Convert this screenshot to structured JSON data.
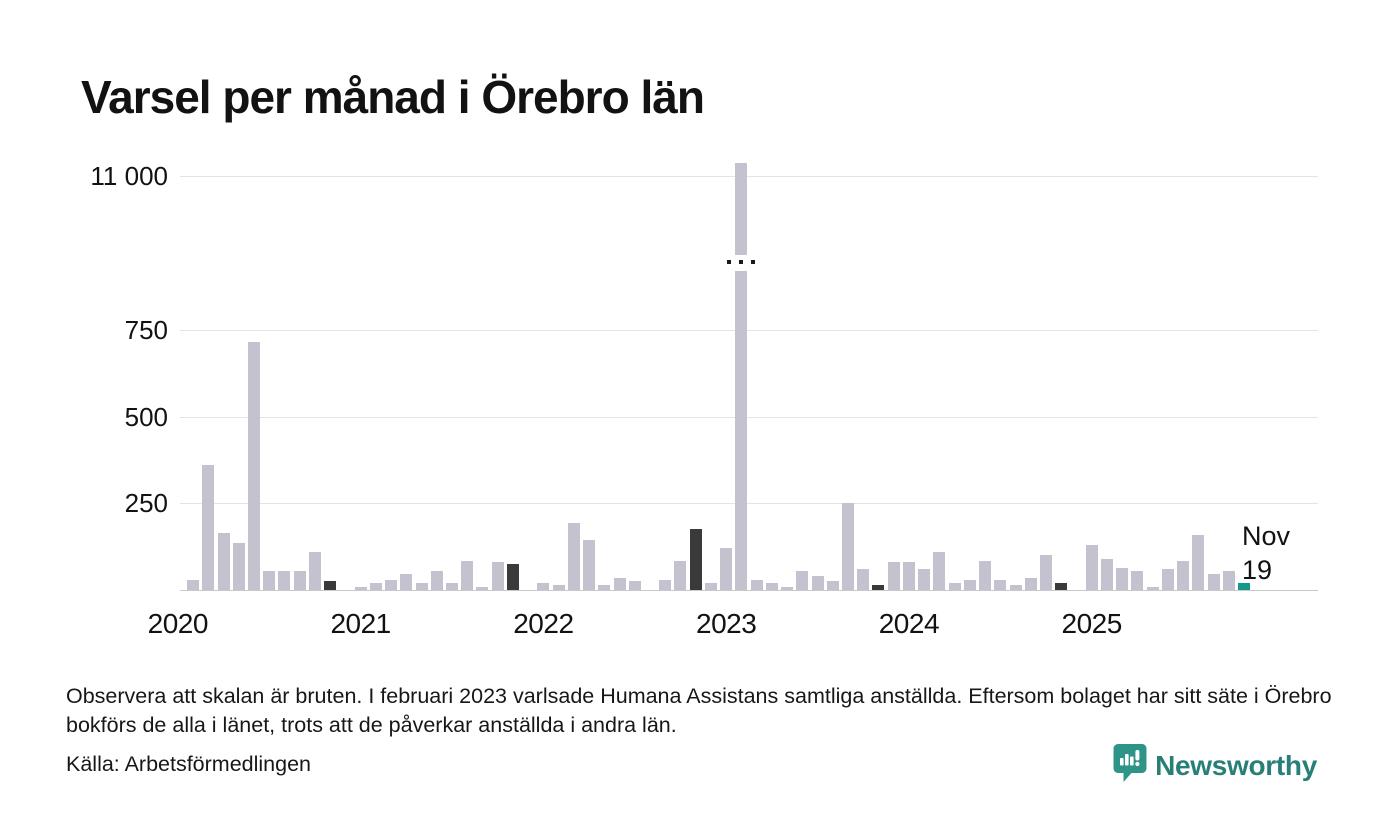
{
  "header": {
    "title": "Varsel per månad i Örebro län"
  },
  "chart_data": {
    "type": "bar",
    "title": "Varsel per månad i Örebro län",
    "ylabel": "",
    "xlabel": "",
    "broken_axis": true,
    "y_ticks": [
      {
        "label": "11 000",
        "value": 11000
      },
      {
        "label": "750",
        "value": 750
      },
      {
        "label": "500",
        "value": 500
      },
      {
        "label": "250",
        "value": 250
      }
    ],
    "x_years": [
      "2020",
      "2021",
      "2022",
      "2023",
      "2024",
      "2025"
    ],
    "legend": "none",
    "months": [
      {
        "d": "2020-02",
        "v": 30
      },
      {
        "d": "2020-03",
        "v": 360
      },
      {
        "d": "2020-04",
        "v": 165
      },
      {
        "d": "2020-05",
        "v": 135
      },
      {
        "d": "2020-06",
        "v": 715
      },
      {
        "d": "2020-07",
        "v": 55
      },
      {
        "d": "2020-08",
        "v": 55
      },
      {
        "d": "2020-09",
        "v": 55
      },
      {
        "d": "2020-10",
        "v": 110
      },
      {
        "d": "2020-11",
        "v": 25,
        "e": "dark"
      },
      {
        "d": "2020-12",
        "v": 0
      },
      {
        "d": "2021-01",
        "v": 10
      },
      {
        "d": "2021-02",
        "v": 20
      },
      {
        "d": "2021-03",
        "v": 30
      },
      {
        "d": "2021-04",
        "v": 45
      },
      {
        "d": "2021-05",
        "v": 20
      },
      {
        "d": "2021-06",
        "v": 55
      },
      {
        "d": "2021-07",
        "v": 20
      },
      {
        "d": "2021-08",
        "v": 85
      },
      {
        "d": "2021-09",
        "v": 10
      },
      {
        "d": "2021-10",
        "v": 80
      },
      {
        "d": "2021-11",
        "v": 75,
        "e": "dark"
      },
      {
        "d": "2021-12",
        "v": 0
      },
      {
        "d": "2022-01",
        "v": 20
      },
      {
        "d": "2022-02",
        "v": 15
      },
      {
        "d": "2022-03",
        "v": 195
      },
      {
        "d": "2022-04",
        "v": 145
      },
      {
        "d": "2022-05",
        "v": 15
      },
      {
        "d": "2022-06",
        "v": 35
      },
      {
        "d": "2022-07",
        "v": 25
      },
      {
        "d": "2022-08",
        "v": 0
      },
      {
        "d": "2022-09",
        "v": 30
      },
      {
        "d": "2022-10",
        "v": 85
      },
      {
        "d": "2022-11",
        "v": 175,
        "e": "dark"
      },
      {
        "d": "2022-12",
        "v": 20
      },
      {
        "d": "2023-01",
        "v": 120
      },
      {
        "d": "2023-02",
        "v": 11030,
        "broken": true
      },
      {
        "d": "2023-03",
        "v": 30
      },
      {
        "d": "2023-04",
        "v": 20
      },
      {
        "d": "2023-05",
        "v": 10
      },
      {
        "d": "2023-06",
        "v": 55
      },
      {
        "d": "2023-07",
        "v": 40
      },
      {
        "d": "2023-08",
        "v": 25
      },
      {
        "d": "2023-09",
        "v": 250
      },
      {
        "d": "2023-10",
        "v": 60
      },
      {
        "d": "2023-11",
        "v": 15,
        "e": "dark"
      },
      {
        "d": "2023-12",
        "v": 80
      },
      {
        "d": "2024-01",
        "v": 80
      },
      {
        "d": "2024-02",
        "v": 60
      },
      {
        "d": "2024-03",
        "v": 110
      },
      {
        "d": "2024-04",
        "v": 20
      },
      {
        "d": "2024-05",
        "v": 30
      },
      {
        "d": "2024-06",
        "v": 85
      },
      {
        "d": "2024-07",
        "v": 30
      },
      {
        "d": "2024-08",
        "v": 15
      },
      {
        "d": "2024-09",
        "v": 35
      },
      {
        "d": "2024-10",
        "v": 100
      },
      {
        "d": "2024-11",
        "v": 20,
        "e": "dark"
      },
      {
        "d": "2024-12",
        "v": 0
      },
      {
        "d": "2025-01",
        "v": 130
      },
      {
        "d": "2025-02",
        "v": 90
      },
      {
        "d": "2025-03",
        "v": 65
      },
      {
        "d": "2025-04",
        "v": 55
      },
      {
        "d": "2025-05",
        "v": 10
      },
      {
        "d": "2025-06",
        "v": 60
      },
      {
        "d": "2025-07",
        "v": 85
      },
      {
        "d": "2025-08",
        "v": 160
      },
      {
        "d": "2025-09",
        "v": 45
      },
      {
        "d": "2025-10",
        "v": 55
      },
      {
        "d": "2025-11",
        "v": 19,
        "e": "now"
      }
    ],
    "annotation": {
      "line1": "Nov",
      "line2": "19"
    }
  },
  "colors": {
    "bar": "#c4c2ce",
    "bar_dark": "#3a3a3a",
    "bar_current": "#15998a",
    "grid": "#e4e4e4",
    "axis": "#c9c9c9",
    "brand": "#2f9488"
  },
  "footer": {
    "note": "Observera att skalan är bruten. I februari 2023 varlsade Humana Assistans samtliga anställda. Eftersom bolaget har sitt säte i Örebro bokförs de alla i länet, trots att de påverkar anställda i andra län.",
    "source": "Källa: Arbetsförmedlingen"
  },
  "logo": {
    "text": "Newsworthy",
    "icon": "newsworthy-bubble-chart-icon"
  }
}
